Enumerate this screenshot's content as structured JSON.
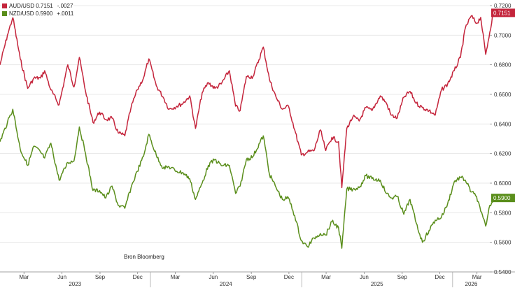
{
  "legend": [
    {
      "pair": "AUD/USD",
      "last": "0.7151",
      "change": "-.0027",
      "color": "#c4243b"
    },
    {
      "pair": "NZD/USD",
      "last": "0.5900",
      "change": "+.0011",
      "color": "#5a8e1b"
    }
  ],
  "source": "Bron Bloomberg",
  "chart_data": {
    "type": "line",
    "x_start": "2023-01-02",
    "x_end": "2026-04-01",
    "ylim": [
      0.54,
      0.72
    ],
    "y_ticks": [
      "0.5400",
      "0.5600",
      "0.5800",
      "0.6000",
      "0.6200",
      "0.6400",
      "0.6600",
      "0.6800",
      "0.7000",
      "0.7200"
    ],
    "month_ticks": [
      {
        "date": "2023-03-01",
        "label": "Mar"
      },
      {
        "date": "2023-06-01",
        "label": "Jun"
      },
      {
        "date": "2023-09-01",
        "label": "Sep"
      },
      {
        "date": "2023-12-01",
        "label": "Dec"
      },
      {
        "date": "2024-03-01",
        "label": "Mar"
      },
      {
        "date": "2024-06-01",
        "label": "Jun"
      },
      {
        "date": "2024-09-01",
        "label": "Sep"
      },
      {
        "date": "2024-12-01",
        "label": "Dec"
      },
      {
        "date": "2025-03-01",
        "label": "Mar"
      },
      {
        "date": "2025-06-01",
        "label": "Jun"
      },
      {
        "date": "2025-09-01",
        "label": "Sep"
      },
      {
        "date": "2025-12-01",
        "label": "Dec"
      },
      {
        "date": "2026-03-01",
        "label": "Mar"
      }
    ],
    "years": [
      {
        "start": "2023-01-01",
        "end": "2023-12-31",
        "label": "2023"
      },
      {
        "start": "2024-01-01",
        "end": "2024-12-31",
        "label": "2024"
      },
      {
        "start": "2025-01-01",
        "end": "2025-12-31",
        "label": "2025"
      },
      {
        "start": "2026-01-01",
        "end": "2026-04-01",
        "label": "2026"
      }
    ],
    "series": [
      {
        "name": "AUD/USD",
        "color": "#c4243b",
        "last": "0.7151",
        "points": [
          [
            "2023-01-02",
            0.68
          ],
          [
            "2023-01-20",
            0.7
          ],
          [
            "2023-02-02",
            0.712
          ],
          [
            "2023-02-20",
            0.684
          ],
          [
            "2023-03-10",
            0.664
          ],
          [
            "2023-03-25",
            0.671
          ],
          [
            "2023-04-10",
            0.671
          ],
          [
            "2023-04-20",
            0.676
          ],
          [
            "2023-05-05",
            0.663
          ],
          [
            "2023-05-25",
            0.653
          ],
          [
            "2023-06-15",
            0.68
          ],
          [
            "2023-06-30",
            0.665
          ],
          [
            "2023-07-13",
            0.685
          ],
          [
            "2023-07-28",
            0.662
          ],
          [
            "2023-08-15",
            0.641
          ],
          [
            "2023-08-31",
            0.648
          ],
          [
            "2023-09-15",
            0.643
          ],
          [
            "2023-09-30",
            0.644
          ],
          [
            "2023-10-15",
            0.634
          ],
          [
            "2023-10-31",
            0.632
          ],
          [
            "2023-11-15",
            0.651
          ],
          [
            "2023-11-30",
            0.663
          ],
          [
            "2023-12-15",
            0.671
          ],
          [
            "2023-12-28",
            0.684
          ],
          [
            "2024-01-15",
            0.666
          ],
          [
            "2024-02-01",
            0.658
          ],
          [
            "2024-02-15",
            0.65
          ],
          [
            "2024-03-05",
            0.652
          ],
          [
            "2024-03-20",
            0.654
          ],
          [
            "2024-04-05",
            0.659
          ],
          [
            "2024-04-19",
            0.637
          ],
          [
            "2024-05-05",
            0.661
          ],
          [
            "2024-05-20",
            0.668
          ],
          [
            "2024-06-05",
            0.664
          ],
          [
            "2024-06-20",
            0.667
          ],
          [
            "2024-07-10",
            0.676
          ],
          [
            "2024-07-25",
            0.652
          ],
          [
            "2024-08-05",
            0.649
          ],
          [
            "2024-08-20",
            0.672
          ],
          [
            "2024-09-05",
            0.672
          ],
          [
            "2024-09-30",
            0.692
          ],
          [
            "2024-10-15",
            0.67
          ],
          [
            "2024-10-31",
            0.658
          ],
          [
            "2024-11-15",
            0.65
          ],
          [
            "2024-11-30",
            0.652
          ],
          [
            "2024-12-15",
            0.636
          ],
          [
            "2024-12-31",
            0.619
          ],
          [
            "2025-01-15",
            0.621
          ],
          [
            "2025-01-31",
            0.622
          ],
          [
            "2025-02-15",
            0.636
          ],
          [
            "2025-02-28",
            0.622
          ],
          [
            "2025-03-15",
            0.631
          ],
          [
            "2025-03-31",
            0.628
          ],
          [
            "2025-04-08",
            0.597
          ],
          [
            "2025-04-20",
            0.637
          ],
          [
            "2025-05-05",
            0.645
          ],
          [
            "2025-05-20",
            0.642
          ],
          [
            "2025-06-05",
            0.651
          ],
          [
            "2025-06-20",
            0.649
          ],
          [
            "2025-07-10",
            0.659
          ],
          [
            "2025-07-25",
            0.654
          ],
          [
            "2025-08-05",
            0.646
          ],
          [
            "2025-08-20",
            0.644
          ],
          [
            "2025-09-05",
            0.658
          ],
          [
            "2025-09-20",
            0.662
          ],
          [
            "2025-10-05",
            0.654
          ],
          [
            "2025-10-20",
            0.651
          ],
          [
            "2025-11-05",
            0.649
          ],
          [
            "2025-11-20",
            0.646
          ],
          [
            "2025-12-05",
            0.663
          ],
          [
            "2025-12-20",
            0.667
          ],
          [
            "2026-01-05",
            0.676
          ],
          [
            "2026-01-20",
            0.685
          ],
          [
            "2026-02-01",
            0.705
          ],
          [
            "2026-02-15",
            0.713
          ],
          [
            "2026-02-28",
            0.708
          ],
          [
            "2026-03-10",
            0.712
          ],
          [
            "2026-03-22",
            0.687
          ],
          [
            "2026-04-01",
            0.702
          ],
          [
            "2026-04-10",
            0.717
          ],
          [
            "2026-04-16",
            0.7151
          ]
        ]
      },
      {
        "name": "NZD/USD",
        "color": "#5a8e1b",
        "last": "0.5900",
        "points": [
          [
            "2023-01-02",
            0.628
          ],
          [
            "2023-01-20",
            0.641
          ],
          [
            "2023-02-02",
            0.65
          ],
          [
            "2023-02-20",
            0.623
          ],
          [
            "2023-03-10",
            0.612
          ],
          [
            "2023-03-25",
            0.625
          ],
          [
            "2023-04-10",
            0.621
          ],
          [
            "2023-04-20",
            0.617
          ],
          [
            "2023-05-05",
            0.627
          ],
          [
            "2023-05-25",
            0.602
          ],
          [
            "2023-06-15",
            0.614
          ],
          [
            "2023-06-30",
            0.615
          ],
          [
            "2023-07-13",
            0.638
          ],
          [
            "2023-07-28",
            0.62
          ],
          [
            "2023-08-15",
            0.595
          ],
          [
            "2023-08-31",
            0.595
          ],
          [
            "2023-09-15",
            0.59
          ],
          [
            "2023-09-30",
            0.598
          ],
          [
            "2023-10-15",
            0.585
          ],
          [
            "2023-10-31",
            0.583
          ],
          [
            "2023-11-15",
            0.597
          ],
          [
            "2023-11-30",
            0.608
          ],
          [
            "2023-12-15",
            0.618
          ],
          [
            "2023-12-28",
            0.633
          ],
          [
            "2024-01-15",
            0.619
          ],
          [
            "2024-02-01",
            0.61
          ],
          [
            "2024-02-15",
            0.611
          ],
          [
            "2024-03-05",
            0.608
          ],
          [
            "2024-03-20",
            0.607
          ],
          [
            "2024-04-05",
            0.603
          ],
          [
            "2024-04-19",
            0.589
          ],
          [
            "2024-05-05",
            0.6
          ],
          [
            "2024-05-20",
            0.612
          ],
          [
            "2024-06-05",
            0.616
          ],
          [
            "2024-06-20",
            0.612
          ],
          [
            "2024-07-10",
            0.612
          ],
          [
            "2024-07-25",
            0.593
          ],
          [
            "2024-08-05",
            0.598
          ],
          [
            "2024-08-20",
            0.616
          ],
          [
            "2024-09-05",
            0.618
          ],
          [
            "2024-09-30",
            0.632
          ],
          [
            "2024-10-15",
            0.606
          ],
          [
            "2024-10-31",
            0.597
          ],
          [
            "2024-11-15",
            0.589
          ],
          [
            "2024-11-30",
            0.59
          ],
          [
            "2024-12-15",
            0.578
          ],
          [
            "2024-12-31",
            0.561
          ],
          [
            "2025-01-15",
            0.557
          ],
          [
            "2025-01-31",
            0.563
          ],
          [
            "2025-02-15",
            0.566
          ],
          [
            "2025-02-28",
            0.565
          ],
          [
            "2025-03-15",
            0.574
          ],
          [
            "2025-03-31",
            0.57
          ],
          [
            "2025-04-08",
            0.556
          ],
          [
            "2025-04-20",
            0.596
          ],
          [
            "2025-05-05",
            0.596
          ],
          [
            "2025-05-20",
            0.597
          ],
          [
            "2025-06-05",
            0.605
          ],
          [
            "2025-06-20",
            0.603
          ],
          [
            "2025-07-10",
            0.602
          ],
          [
            "2025-07-25",
            0.593
          ],
          [
            "2025-08-05",
            0.59
          ],
          [
            "2025-08-20",
            0.591
          ],
          [
            "2025-09-05",
            0.579
          ],
          [
            "2025-09-20",
            0.589
          ],
          [
            "2025-10-05",
            0.573
          ],
          [
            "2025-10-20",
            0.56
          ],
          [
            "2025-11-05",
            0.568
          ],
          [
            "2025-11-20",
            0.575
          ],
          [
            "2025-12-05",
            0.577
          ],
          [
            "2025-12-20",
            0.586
          ],
          [
            "2026-01-05",
            0.601
          ],
          [
            "2026-01-20",
            0.604
          ],
          [
            "2026-02-01",
            0.602
          ],
          [
            "2026-02-15",
            0.594
          ],
          [
            "2026-02-28",
            0.591
          ],
          [
            "2026-03-10",
            0.581
          ],
          [
            "2026-03-22",
            0.571
          ],
          [
            "2026-04-01",
            0.585
          ],
          [
            "2026-04-10",
            0.589
          ],
          [
            "2026-04-16",
            0.59
          ]
        ]
      }
    ]
  }
}
